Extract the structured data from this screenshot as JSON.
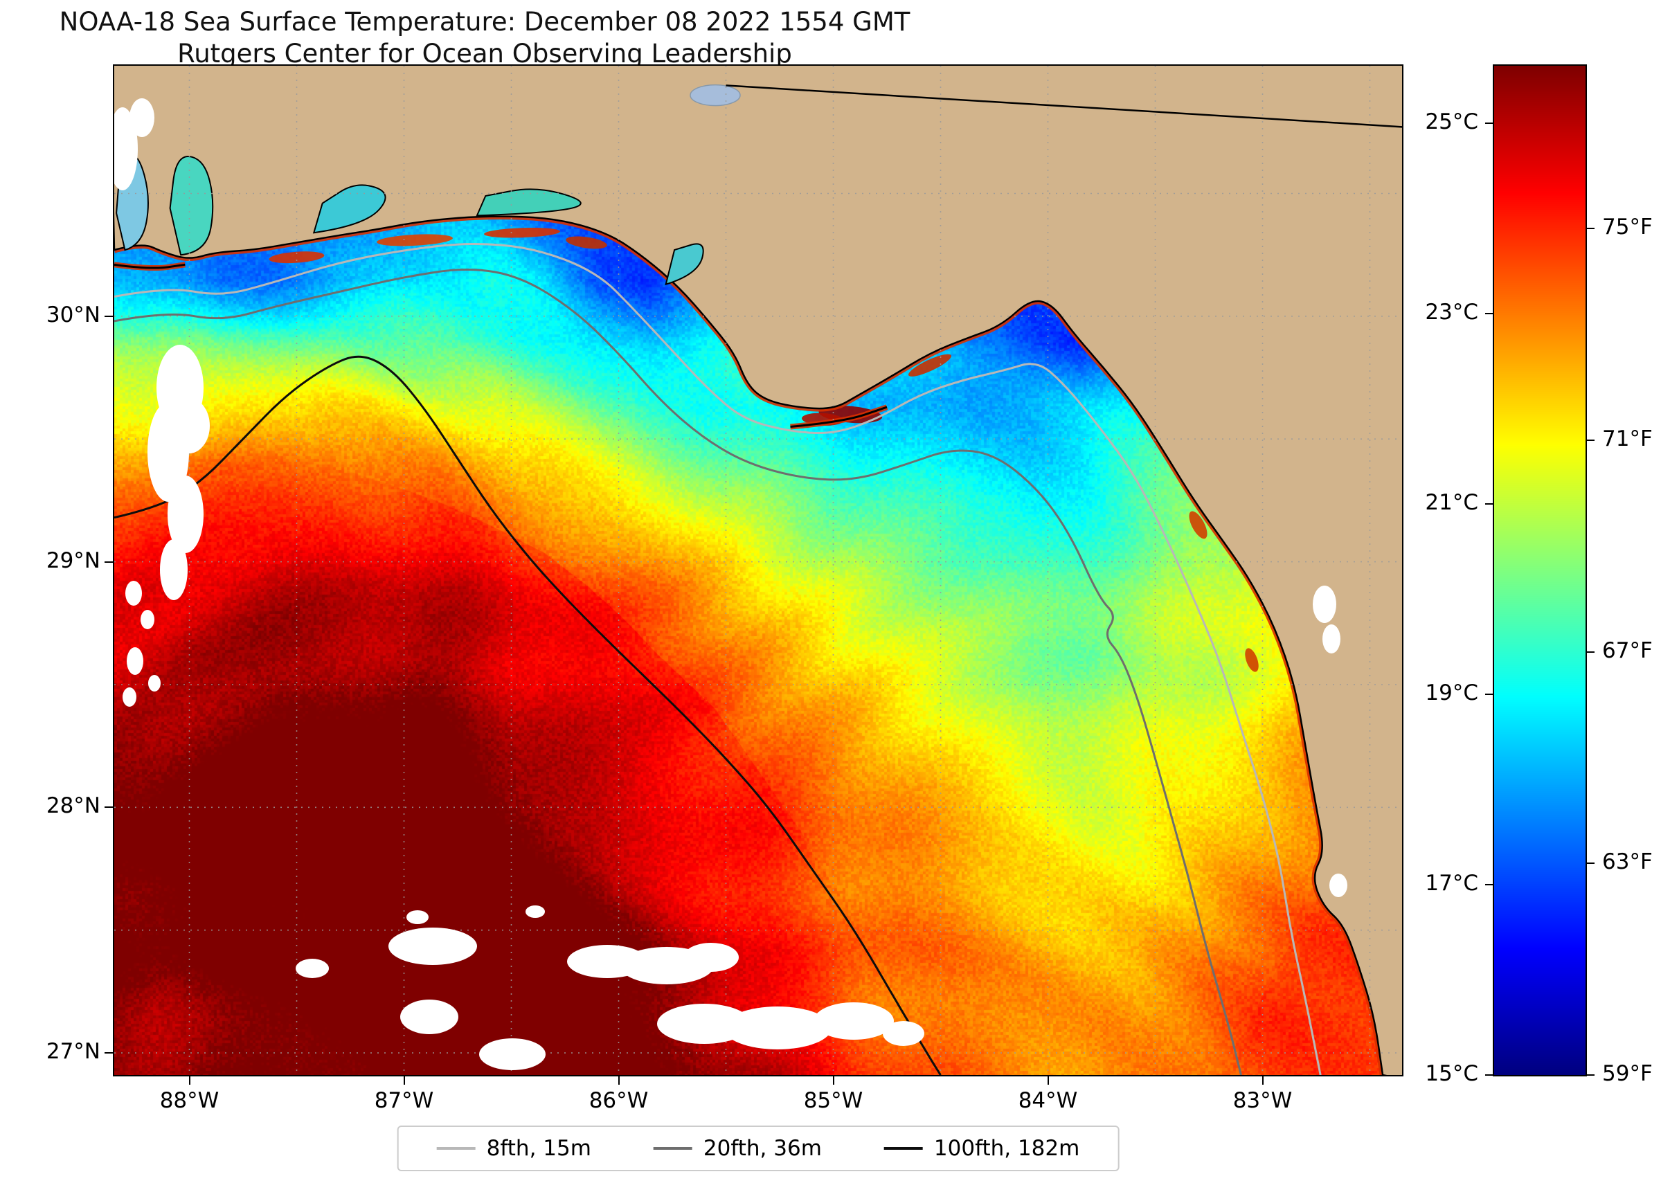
{
  "title": {
    "line1": "NOAA-18 Sea Surface Temperature: December 08 2022 1554 GMT",
    "line2": "Rutgers Center for Ocean Observing Leadership"
  },
  "colors": {
    "land": "#d2b48c",
    "lake": "#a6bddb",
    "cloud": "#ffffff",
    "gridline": "#9a9a9a",
    "coast": "#000000",
    "coast_warm_rim": "#d83000",
    "contour_8fth": "#b8b8b8",
    "contour_20fth": "#6e6e6e",
    "contour_100fth": "#0d0d0d",
    "frame": "#000000",
    "background": "#ffffff"
  },
  "axes": {
    "x_ticks": [
      {
        "label": "88°W",
        "lon": -88
      },
      {
        "label": "87°W",
        "lon": -87
      },
      {
        "label": "86°W",
        "lon": -86
      },
      {
        "label": "85°W",
        "lon": -85
      },
      {
        "label": "84°W",
        "lon": -84
      },
      {
        "label": "83°W",
        "lon": -83
      }
    ],
    "y_ticks": [
      {
        "label": "30°N",
        "lat": 30
      },
      {
        "label": "29°N",
        "lat": 29
      },
      {
        "label": "28°N",
        "lat": 28
      },
      {
        "label": "27°N",
        "lat": 27
      }
    ]
  },
  "colorbar": {
    "min_c": 15,
    "max_c": 25.6,
    "celsius_ticks": [
      {
        "label": "25°C",
        "value_c": 25
      },
      {
        "label": "23°C",
        "value_c": 23
      },
      {
        "label": "21°C",
        "value_c": 21
      },
      {
        "label": "19°C",
        "value_c": 19
      },
      {
        "label": "17°C",
        "value_c": 17
      },
      {
        "label": "15°C",
        "value_c": 15
      }
    ],
    "fahrenheit_ticks": [
      {
        "label": "75°F",
        "value_c": 23.889
      },
      {
        "label": "71°F",
        "value_c": 21.667
      },
      {
        "label": "67°F",
        "value_c": 19.444
      },
      {
        "label": "63°F",
        "value_c": 17.222
      },
      {
        "label": "59°F",
        "value_c": 15
      }
    ]
  },
  "legend": {
    "items": [
      {
        "label": "8fth, 15m",
        "color": "#b8b8b8"
      },
      {
        "label": "20fth, 36m",
        "color": "#6e6e6e"
      },
      {
        "label": "100fth, 182m",
        "color": "#0d0d0d"
      }
    ]
  },
  "chart_data": {
    "type": "heatmap",
    "title": "NOAA-18 Sea Surface Temperature: December 08 2022 1554 GMT",
    "subtitle": "Rutgers Center for Ocean Observing Leadership",
    "variable": "sea surface temperature",
    "units": "°C",
    "colormap": "jet",
    "color_scale_c": [
      15,
      25.6
    ],
    "lon_range": [
      -88.35,
      -82.35
    ],
    "lat_range": [
      26.91,
      31.02
    ],
    "x_tick_labels": [
      "88°W",
      "87°W",
      "86°W",
      "85°W",
      "84°W",
      "83°W"
    ],
    "y_tick_labels": [
      "30°N",
      "29°N",
      "28°N",
      "27°N"
    ],
    "contour_legend": [
      "8fth, 15m",
      "20fth, 36m",
      "100fth, 182m"
    ],
    "grid": {
      "lon_start": -88.35,
      "lon_step": 0.25,
      "lat_start": 30.9,
      "lat_step": -0.25,
      "cols": 25,
      "rows": 17,
      "sst_c": [
        [
          18,
          18,
          18,
          18,
          18.5,
          18.5,
          18.5,
          18.5,
          18.5,
          18.5,
          18.5,
          18.5,
          18.5,
          18.5,
          18.5,
          18,
          18,
          18,
          18,
          18,
          18.5,
          19,
          19,
          19,
          19
        ],
        [
          17.5,
          17.2,
          17.5,
          17.8,
          18,
          18.2,
          18.5,
          18.5,
          18.2,
          18,
          18,
          18.5,
          18.5,
          18.5,
          18.5,
          18,
          17.8,
          17.5,
          17.8,
          18,
          18.5,
          19,
          19.5,
          19.5,
          19.5
        ],
        [
          17.4,
          17,
          16.8,
          17.3,
          17.8,
          18.3,
          18.6,
          18.3,
          17.8,
          17.4,
          17.6,
          18.2,
          18.8,
          19,
          19,
          18.6,
          18,
          17.2,
          17.5,
          18.2,
          19,
          19.6,
          20,
          20,
          20
        ],
        [
          18.3,
          17.8,
          17.4,
          17.6,
          18.1,
          18.6,
          19.1,
          19.3,
          18.8,
          17.6,
          17.3,
          18.4,
          19.1,
          19.6,
          19.9,
          19.4,
          18.4,
          17.2,
          17.6,
          18.4,
          19.2,
          19.8,
          20.2,
          20.4,
          20.5
        ],
        [
          20.2,
          20,
          19.7,
          19.9,
          20.3,
          20.1,
          19.8,
          19.6,
          19.2,
          18.7,
          18.5,
          19,
          19.4,
          19.1,
          18.7,
          18.1,
          17.6,
          17.3,
          17,
          18,
          19,
          19.7,
          20.3,
          20.6,
          20.8
        ],
        [
          21.5,
          21.6,
          21.7,
          21.9,
          22,
          21.7,
          21.3,
          21,
          20.5,
          20,
          19.7,
          19.4,
          19.2,
          18.9,
          18.5,
          18.1,
          17.9,
          18,
          18.3,
          18.8,
          19.4,
          20,
          20.6,
          21,
          21.2
        ],
        [
          22.6,
          22.9,
          23.1,
          23.3,
          23.3,
          23,
          22.7,
          22.3,
          21.8,
          21.2,
          20.7,
          20.2,
          19.9,
          19.5,
          19.1,
          18.7,
          18.4,
          18.4,
          18.7,
          19.2,
          19.8,
          20.4,
          21,
          21.4,
          21.6
        ],
        [
          23.8,
          24,
          24.2,
          24.3,
          24.2,
          24,
          23.7,
          23.3,
          22.9,
          22.3,
          21.8,
          21.2,
          20.7,
          20.3,
          19.9,
          19.5,
          19.2,
          19.1,
          19.3,
          19.7,
          20.2,
          20.8,
          21.4,
          21.8,
          22
        ],
        [
          24.6,
          24.9,
          25.1,
          25.2,
          25.1,
          24.9,
          24.6,
          24.2,
          23.8,
          23.2,
          22.7,
          22.2,
          21.7,
          21.2,
          20.8,
          20.4,
          20,
          19.8,
          19.9,
          20.2,
          20.6,
          21.2,
          21.7,
          22.1,
          22.3
        ],
        [
          25.1,
          25.4,
          25.6,
          25.7,
          25.6,
          25.4,
          25.2,
          24.8,
          24.4,
          23.9,
          23.3,
          22.8,
          22.3,
          21.8,
          21.4,
          21,
          20.6,
          20.3,
          20.3,
          20.5,
          20.9,
          21.4,
          21.9,
          22.3,
          22.5
        ],
        [
          25.4,
          25.6,
          25.8,
          25.9,
          25.8,
          25.6,
          25.4,
          25.1,
          24.8,
          24.3,
          23.9,
          23.4,
          22.9,
          22.4,
          22,
          21.6,
          21.2,
          20.9,
          20.7,
          20.8,
          21.2,
          21.7,
          22.2,
          22.6,
          22.8
        ],
        [
          25.6,
          25.8,
          25.9,
          26,
          25.9,
          25.8,
          25.6,
          25.4,
          25.1,
          24.7,
          24.3,
          23.8,
          23.3,
          22.8,
          22.4,
          22,
          21.6,
          21.3,
          21.1,
          21.2,
          21.5,
          22,
          22.5,
          22.9,
          23.1
        ],
        [
          25.7,
          25.9,
          26,
          26,
          26,
          25.9,
          25.7,
          25.5,
          25.3,
          25,
          24.6,
          24.2,
          23.7,
          23.2,
          22.8,
          22.4,
          22,
          21.7,
          21.5,
          21.5,
          21.8,
          22.3,
          22.8,
          23.2,
          23.4
        ],
        [
          25.8,
          26,
          26,
          26,
          26,
          25.9,
          25.8,
          25.6,
          25.4,
          25.1,
          24.8,
          24.4,
          24,
          23.5,
          23.1,
          22.7,
          22.3,
          22,
          21.8,
          21.8,
          22.1,
          22.6,
          23.1,
          23.5,
          23.7
        ],
        [
          25.9,
          26,
          26.1,
          26.1,
          26,
          26,
          25.9,
          25.7,
          25.5,
          25.3,
          25,
          24.6,
          24.2,
          23.8,
          23.4,
          23,
          22.6,
          22.3,
          22.1,
          22.1,
          22.4,
          22.9,
          23.4,
          23.8,
          24
        ],
        [
          25.9,
          26,
          26.1,
          26.1,
          26.1,
          26,
          25.9,
          25.8,
          25.6,
          25.4,
          25.1,
          24.8,
          24.4,
          24,
          23.6,
          23.2,
          22.9,
          22.6,
          22.4,
          22.4,
          22.7,
          23.2,
          23.7,
          24,
          24.2
        ],
        [
          26,
          26,
          26.1,
          26.1,
          26.1,
          26,
          26,
          25.8,
          25.7,
          25.5,
          25.2,
          24.9,
          24.6,
          24.2,
          23.8,
          23.4,
          23.1,
          22.8,
          22.6,
          22.6,
          22.9,
          23.4,
          23.8,
          24.1,
          24.3
        ]
      ]
    }
  }
}
